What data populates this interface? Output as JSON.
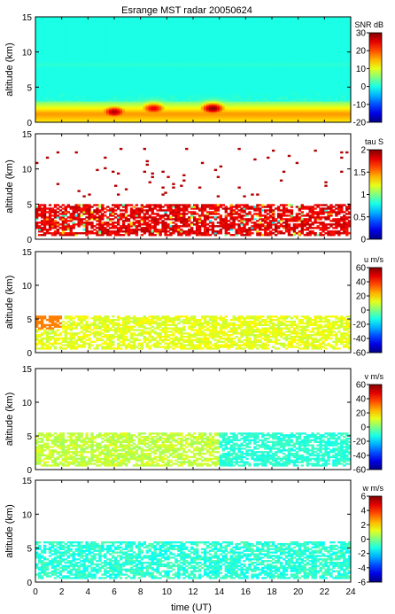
{
  "figure": {
    "title": "Esrange MST radar 20050624",
    "xlabel": "time (UT)"
  },
  "colormap": "jet",
  "chart_data": [
    {
      "type": "heatmap",
      "quantity": "SNR",
      "xlabel": "",
      "ylabel": "altitude (km)",
      "xlim": [
        0,
        24
      ],
      "ylim": [
        0,
        15
      ],
      "xticks": [
        0,
        2,
        4,
        6,
        8,
        10,
        12,
        14,
        16,
        18,
        20,
        22,
        24
      ],
      "yticks": [
        0,
        5,
        10,
        15
      ],
      "colorbar": {
        "label": "SNR dB",
        "range": [
          -20,
          30
        ],
        "ticks": [
          -20,
          -10,
          0,
          10,
          20,
          30
        ]
      },
      "features": {
        "background_level": -5,
        "enhanced_layers": [
          {
            "alt_range": [
              0,
              2.5
            ],
            "level": 10
          },
          {
            "alt_range": [
              8,
              8.5
            ],
            "level": 2
          }
        ],
        "peaks": [
          {
            "x": 6,
            "y": 1.5,
            "value": 28
          },
          {
            "x": 9,
            "y": 2,
            "value": 25
          },
          {
            "x": 13.5,
            "y": 2,
            "value": 30
          }
        ]
      }
    },
    {
      "type": "heatmap",
      "quantity": "tau",
      "ylabel": "altitude (km)",
      "xlim": [
        0,
        24
      ],
      "ylim": [
        0,
        15
      ],
      "xticks": [
        0,
        2,
        4,
        6,
        8,
        10,
        12,
        14,
        16,
        18,
        20,
        22,
        24
      ],
      "yticks": [
        0,
        5,
        10,
        15
      ],
      "colorbar": {
        "label": "tau S",
        "range": [
          0,
          2
        ],
        "ticks": [
          0,
          0.5,
          1,
          1.5,
          2
        ]
      },
      "features": {
        "data_region_alt": [
          0.5,
          5
        ],
        "dominant_value": 1.9,
        "scattered_upper_points_alt": [
          6,
          13
        ]
      }
    },
    {
      "type": "heatmap",
      "quantity": "u",
      "ylabel": "altitude (km)",
      "xlim": [
        0,
        24
      ],
      "ylim": [
        0,
        15
      ],
      "xticks": [
        0,
        2,
        4,
        6,
        8,
        10,
        12,
        14,
        16,
        18,
        20,
        22,
        24
      ],
      "yticks": [
        0,
        5,
        10,
        15
      ],
      "colorbar": {
        "label": "u m/s",
        "range": [
          -60,
          60
        ],
        "ticks": [
          -60,
          -40,
          -20,
          0,
          20,
          40,
          60
        ]
      },
      "features": {
        "data_region_alt": [
          0.5,
          5.5
        ],
        "typical_value": 12,
        "early_patch_value": 30
      }
    },
    {
      "type": "heatmap",
      "quantity": "v",
      "ylabel": "altitude (km)",
      "xlim": [
        0,
        24
      ],
      "ylim": [
        0,
        15
      ],
      "xticks": [
        0,
        2,
        4,
        6,
        8,
        10,
        12,
        14,
        16,
        18,
        20,
        22,
        24
      ],
      "yticks": [
        0,
        5,
        10,
        15
      ],
      "colorbar": {
        "label": "v m/s",
        "range": [
          -60,
          60
        ],
        "ticks": [
          -60,
          -40,
          -20,
          0,
          20,
          40,
          60
        ]
      },
      "features": {
        "data_region_alt": [
          0.5,
          5.5
        ],
        "typical_value": 8,
        "late_value": -10
      }
    },
    {
      "type": "heatmap",
      "quantity": "w",
      "ylabel": "altitude (km)",
      "xlim": [
        0,
        24
      ],
      "ylim": [
        0,
        15
      ],
      "xticks": [
        0,
        2,
        4,
        6,
        8,
        10,
        12,
        14,
        16,
        18,
        20,
        22,
        24
      ],
      "yticks": [
        0,
        5,
        10,
        15
      ],
      "colorbar": {
        "label": "w m/s",
        "range": [
          -6,
          6
        ],
        "ticks": [
          -6,
          -4,
          -2,
          0,
          2,
          4,
          6
        ]
      },
      "features": {
        "data_region_alt": [
          0.5,
          6
        ],
        "typical_value": -1
      }
    }
  ]
}
